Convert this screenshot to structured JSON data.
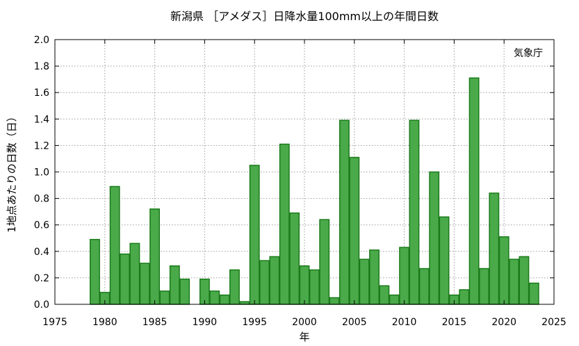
{
  "chart_data": {
    "type": "bar",
    "title": "新潟県 ［アメダス］日降水量100mm以上の年間日数",
    "xlabel": "年",
    "ylabel": "1地点あたりの日数（日）",
    "annotation": "気象庁",
    "xlim": [
      1975,
      2025
    ],
    "ylim": [
      0,
      2.0
    ],
    "xticks": [
      1975,
      1980,
      1985,
      1990,
      1995,
      2000,
      2005,
      2010,
      2015,
      2020,
      2025
    ],
    "yticks": [
      0.0,
      0.2,
      0.4,
      0.6,
      0.8,
      1.0,
      1.2,
      1.4,
      1.6,
      1.8,
      2.0
    ],
    "ytick_labels": [
      "0.0",
      "0.2",
      "0.4",
      "0.6",
      "0.8",
      "1.0",
      "1.2",
      "1.4",
      "1.6",
      "1.8",
      "2.0"
    ],
    "grid": true,
    "bar_color": "#4aaa4a",
    "bar_edge_color": "#1a7a1a",
    "series": [
      {
        "x": [
          1979,
          1980,
          1981,
          1982,
          1983,
          1984,
          1985,
          1986,
          1987,
          1988,
          1989,
          1990,
          1991,
          1992,
          1993,
          1994,
          1995,
          1996,
          1997,
          1998,
          1999,
          2000,
          2001,
          2002,
          2003,
          2004,
          2005,
          2006,
          2007,
          2008,
          2009,
          2010,
          2011,
          2012,
          2013,
          2014,
          2015,
          2016,
          2017,
          2018,
          2019,
          2020,
          2021,
          2022,
          2023
        ],
        "values": [
          0.49,
          0.09,
          0.89,
          0.38,
          0.46,
          0.31,
          0.72,
          0.1,
          0.29,
          0.19,
          0.0,
          0.19,
          0.1,
          0.07,
          0.26,
          0.02,
          1.05,
          0.33,
          0.36,
          1.21,
          0.69,
          0.29,
          0.26,
          0.64,
          0.05,
          1.39,
          1.11,
          0.34,
          0.41,
          0.14,
          0.07,
          0.43,
          1.39,
          0.27,
          1.0,
          0.66,
          0.07,
          0.11,
          1.71,
          0.27,
          0.84,
          0.51,
          0.34,
          0.36,
          0.16
        ]
      }
    ]
  }
}
